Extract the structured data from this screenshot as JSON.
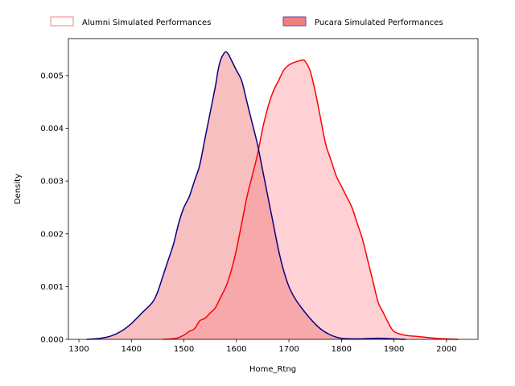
{
  "chart_data": {
    "type": "area",
    "title": "",
    "xlabel": "Home_Rtng",
    "ylabel": "Density",
    "xlim": [
      1280,
      2060
    ],
    "ylim": [
      0,
      0.0057
    ],
    "xticks": [
      1300,
      1400,
      1500,
      1600,
      1700,
      1800,
      1900,
      2000
    ],
    "yticks": [
      0.0,
      0.001,
      0.002,
      0.003,
      0.004,
      0.005
    ],
    "ytick_labels": [
      "0.000",
      "0.001",
      "0.002",
      "0.003",
      "0.004",
      "0.005"
    ],
    "xtick_labels": [
      "1300",
      "1400",
      "1500",
      "1600",
      "1700",
      "1800",
      "1900",
      "2000"
    ],
    "legend": {
      "placement": "top-center, above plot",
      "columns": 2
    },
    "grid": false,
    "series": [
      {
        "name": "Alumni Simulated Performances",
        "line_color": "#ff0000",
        "fill_color": "#ffc0c6",
        "fill_opacity": 0.75,
        "x": [
          1460,
          1485,
          1500,
          1510,
          1520,
          1530,
          1540,
          1550,
          1560,
          1570,
          1580,
          1590,
          1600,
          1610,
          1620,
          1630,
          1640,
          1650,
          1660,
          1670,
          1680,
          1690,
          1700,
          1710,
          1720,
          1725,
          1730,
          1740,
          1750,
          1760,
          1770,
          1780,
          1790,
          1800,
          1810,
          1820,
          1830,
          1840,
          1850,
          1860,
          1870,
          1880,
          1890,
          1900,
          1920,
          1950,
          1980,
          2000,
          2022
        ],
        "y": [
          0.0,
          2e-05,
          8e-05,
          0.00015,
          0.0002,
          0.00035,
          0.0004,
          0.0005,
          0.0006,
          0.0008,
          0.001,
          0.0013,
          0.0017,
          0.0022,
          0.0027,
          0.0031,
          0.0035,
          0.004,
          0.0044,
          0.0047,
          0.0049,
          0.0051,
          0.0052,
          0.00525,
          0.00528,
          0.00529,
          0.00528,
          0.0051,
          0.0047,
          0.0042,
          0.0037,
          0.0034,
          0.0031,
          0.0029,
          0.0027,
          0.0025,
          0.0022,
          0.0019,
          0.0015,
          0.0011,
          0.0007,
          0.0005,
          0.0003,
          0.00015,
          8e-05,
          5e-05,
          2e-05,
          1e-05,
          0.0
        ]
      },
      {
        "name": "Pucara Simulated Performances",
        "line_color": "#0a0080",
        "fill_color": "#f08080",
        "fill_opacity": 0.5,
        "x": [
          1315,
          1340,
          1360,
          1380,
          1400,
          1420,
          1440,
          1450,
          1460,
          1470,
          1480,
          1490,
          1500,
          1510,
          1520,
          1530,
          1540,
          1550,
          1560,
          1565,
          1570,
          1575,
          1580,
          1585,
          1590,
          1600,
          1610,
          1620,
          1630,
          1640,
          1650,
          1660,
          1670,
          1680,
          1690,
          1700,
          1710,
          1720,
          1740,
          1760,
          1780,
          1800,
          1820,
          1840,
          1860,
          1880,
          1900,
          1922
        ],
        "y": [
          0.0,
          2e-05,
          6e-05,
          0.00015,
          0.0003,
          0.0005,
          0.0007,
          0.0009,
          0.0012,
          0.0015,
          0.0018,
          0.0022,
          0.0025,
          0.0027,
          0.003,
          0.0033,
          0.0038,
          0.0043,
          0.0048,
          0.0051,
          0.0053,
          0.0054,
          0.00545,
          0.0054,
          0.0053,
          0.0051,
          0.0049,
          0.0045,
          0.0041,
          0.0037,
          0.0032,
          0.0027,
          0.0022,
          0.0017,
          0.0013,
          0.001,
          0.0008,
          0.00065,
          0.0004,
          0.0002,
          8e-05,
          2e-05,
          1e-05,
          1e-05,
          2e-05,
          2e-05,
          1e-05,
          0.0
        ]
      }
    ]
  }
}
